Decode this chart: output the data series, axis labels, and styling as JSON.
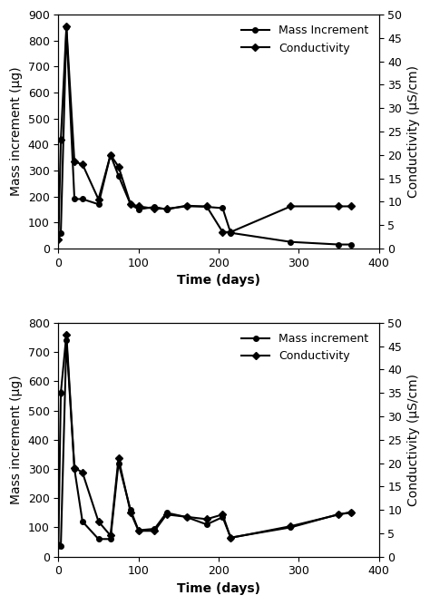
{
  "top_chart": {
    "mass_increment": {
      "x": [
        0,
        3,
        10,
        20,
        30,
        50,
        65,
        75,
        90,
        100,
        120,
        135,
        160,
        185,
        205,
        215,
        290,
        350,
        365
      ],
      "y": [
        55,
        60,
        850,
        190,
        190,
        170,
        360,
        280,
        170,
        150,
        160,
        150,
        165,
        160,
        155,
        60,
        25,
        15,
        15
      ]
    },
    "conductivity": {
      "x": [
        0,
        3,
        10,
        20,
        30,
        50,
        65,
        75,
        90,
        100,
        120,
        135,
        160,
        185,
        205,
        215,
        290,
        350,
        365
      ],
      "y": [
        2.0,
        23.2,
        47.5,
        18.5,
        18.0,
        10.5,
        20.0,
        17.5,
        9.5,
        9.0,
        8.5,
        8.5,
        9.0,
        9.0,
        3.5,
        3.5,
        9.0,
        9.0,
        9.0
      ]
    },
    "ylabel_left": "Mass increment (µg)",
    "ylabel_right": "Conductivity (µS/cm)",
    "xlabel": "Time (days)",
    "ylim_left": [
      0,
      900
    ],
    "ylim_right": [
      0,
      50
    ],
    "xlim": [
      0,
      400
    ],
    "yticks_left": [
      0,
      100,
      200,
      300,
      400,
      500,
      600,
      700,
      800,
      900
    ],
    "legend_mass": "Mass Increment",
    "legend_cond": "Conductivity"
  },
  "bottom_chart": {
    "mass_increment": {
      "x": [
        0,
        3,
        10,
        20,
        30,
        50,
        65,
        75,
        90,
        100,
        120,
        135,
        160,
        185,
        205,
        215,
        290,
        350,
        365
      ],
      "y": [
        40,
        35,
        740,
        300,
        120,
        60,
        60,
        320,
        160,
        90,
        95,
        150,
        135,
        110,
        135,
        65,
        100,
        145,
        150
      ]
    },
    "conductivity": {
      "x": [
        0,
        3,
        10,
        20,
        30,
        50,
        65,
        75,
        90,
        100,
        120,
        135,
        160,
        185,
        205,
        215,
        290,
        350,
        365
      ],
      "y": [
        2.5,
        35.0,
        47.5,
        19.0,
        18.0,
        7.5,
        4.5,
        21.0,
        9.5,
        5.5,
        5.5,
        9.0,
        8.5,
        8.0,
        9.0,
        4.0,
        6.5,
        9.0,
        9.5
      ]
    },
    "ylabel_left": "Mass increment (µg)",
    "ylabel_right": "Conductivity (µS/cm)",
    "xlabel": "Time (days)",
    "ylim_left": [
      0,
      800
    ],
    "ylim_right": [
      0,
      50
    ],
    "xlim": [
      0,
      400
    ],
    "yticks_left": [
      0,
      100,
      200,
      300,
      400,
      500,
      600,
      700,
      800
    ],
    "legend_mass": "Mass increment",
    "legend_cond": "Conductivity"
  },
  "background_color": "#ffffff",
  "line_color": "#000000",
  "marker_circle": "o",
  "marker_diamond": "D",
  "yticks_right": [
    0,
    5,
    10,
    15,
    20,
    25,
    30,
    35,
    40,
    45,
    50
  ],
  "xticks": [
    0,
    100,
    200,
    300,
    400
  ],
  "fontsize_label": 10,
  "fontsize_tick": 9,
  "fontsize_legend": 9
}
